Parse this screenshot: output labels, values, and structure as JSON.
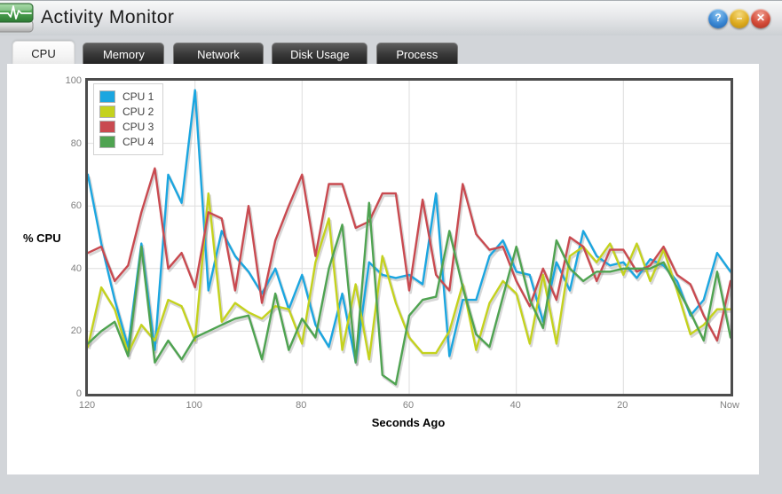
{
  "window": {
    "title": "Activity Monitor",
    "controls": {
      "help": {
        "glyph": "?"
      },
      "minimize": {
        "glyph": "–"
      },
      "close": {
        "glyph": "✕"
      }
    }
  },
  "tabs": [
    {
      "label": "CPU",
      "active": true
    },
    {
      "label": "Memory",
      "active": false
    },
    {
      "label": "Network",
      "active": false
    },
    {
      "label": "Disk Usage",
      "active": false
    },
    {
      "label": "Process",
      "active": false
    }
  ],
  "chart_data": {
    "type": "line",
    "title": "",
    "xlabel": "Seconds Ago",
    "ylabel": "% CPU",
    "ylim": [
      0,
      100
    ],
    "xlim_seconds_ago": [
      120,
      0
    ],
    "grid": true,
    "grid_color": "#dedede",
    "plot_border_color": "#4c4c4c",
    "legend_position": "top-left",
    "x_tick_labels": [
      "120",
      "100",
      "80",
      "60",
      "40",
      "20",
      "Now"
    ],
    "y_tick_labels": [
      "100",
      "80",
      "60",
      "40",
      "20",
      "0"
    ],
    "x": [
      120,
      117.5,
      115,
      112.5,
      110,
      107.5,
      105,
      102.5,
      100,
      97.5,
      95,
      92.5,
      90,
      87.5,
      85,
      82.5,
      80,
      77.5,
      75,
      72.5,
      70,
      67.5,
      65,
      62.5,
      60,
      57.5,
      55,
      52.5,
      50,
      47.5,
      45,
      42.5,
      40,
      37.5,
      35,
      32.5,
      30,
      27.5,
      25,
      22.5,
      20,
      17.5,
      15,
      12.5,
      10,
      7.5,
      5,
      2.5,
      0
    ],
    "series": [
      {
        "name": "CPU 1",
        "color": "#1ba6e0",
        "values": [
          70,
          48,
          30,
          15,
          48,
          14,
          70,
          61,
          97,
          33,
          52,
          44,
          39,
          32,
          40,
          27,
          38,
          22,
          15,
          32,
          10,
          42,
          38,
          37,
          38,
          35,
          64,
          12,
          30,
          30,
          44,
          49,
          39,
          38,
          23,
          42,
          33,
          52,
          44,
          41,
          42,
          37,
          43,
          41,
          36,
          25,
          30,
          45,
          39
        ]
      },
      {
        "name": "CPU 2",
        "color": "#c4d21e",
        "values": [
          15,
          34,
          27,
          13,
          22,
          17,
          30,
          28,
          17,
          64,
          23,
          29,
          26,
          24,
          28,
          27,
          16,
          42,
          56,
          14,
          35,
          11,
          44,
          29,
          18,
          13,
          13,
          20,
          35,
          14,
          29,
          36,
          32,
          16,
          38,
          16,
          44,
          47,
          42,
          48,
          38,
          48,
          36,
          46,
          33,
          19,
          22,
          27,
          27
        ]
      },
      {
        "name": "CPU 3",
        "color": "#c94a50",
        "values": [
          45,
          47,
          36,
          41,
          58,
          72,
          40,
          45,
          34,
          58,
          56,
          33,
          60,
          29,
          49,
          60,
          70,
          44,
          67,
          67,
          53,
          55,
          64,
          64,
          33,
          62,
          38,
          33,
          67,
          51,
          46,
          47,
          36,
          28,
          40,
          30,
          50,
          47,
          36,
          46,
          46,
          39,
          41,
          47,
          38,
          35,
          25,
          17,
          36
        ]
      },
      {
        "name": "CPU 4",
        "color": "#4fa351",
        "values": [
          16,
          20,
          23,
          12,
          47,
          10,
          17,
          11,
          18,
          20,
          22,
          24,
          25,
          11,
          32,
          14,
          24,
          18,
          40,
          54,
          10,
          61,
          6,
          3,
          25,
          30,
          31,
          52,
          34,
          19,
          15,
          31,
          47,
          30,
          21,
          49,
          40,
          36,
          39,
          39,
          40,
          40,
          40,
          42,
          34,
          26,
          17,
          39,
          18
        ]
      }
    ]
  }
}
